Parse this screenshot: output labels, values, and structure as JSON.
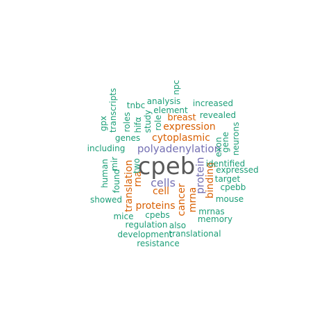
{
  "colors": {
    "background": "#ffffff",
    "tier1": "#595959",
    "tier2": "#7570b3",
    "tier3": "#d95f02",
    "tier4": "#1b9e77"
  },
  "words": [
    {
      "text": "cpeb",
      "color": "tier1",
      "rotated": false
    },
    {
      "text": "polyadenylation",
      "color": "tier2",
      "rotated": false
    },
    {
      "text": "cells",
      "color": "tier2",
      "rotated": false
    },
    {
      "text": "protein",
      "color": "tier2",
      "rotated": true
    },
    {
      "text": "cytoplasmic",
      "color": "tier3",
      "rotated": false
    },
    {
      "text": "expression",
      "color": "tier3",
      "rotated": false
    },
    {
      "text": "breast",
      "color": "tier3",
      "rotated": false
    },
    {
      "text": "translation",
      "color": "tier3",
      "rotated": true
    },
    {
      "text": "rna",
      "color": "tier3",
      "rotated": true
    },
    {
      "text": "cell",
      "color": "tier3",
      "rotated": false
    },
    {
      "text": "cancer",
      "color": "tier3",
      "rotated": true
    },
    {
      "text": "binding",
      "color": "tier3",
      "rotated": true
    },
    {
      "text": "mrna",
      "color": "tier3",
      "rotated": true
    },
    {
      "text": "proteins",
      "color": "tier3",
      "rotated": false
    },
    {
      "text": "npc",
      "color": "tier4",
      "rotated": true
    },
    {
      "text": "analysis",
      "color": "tier4",
      "rotated": false
    },
    {
      "text": "increased",
      "color": "tier4",
      "rotated": false
    },
    {
      "text": "tnbc",
      "color": "tier4",
      "rotated": false
    },
    {
      "text": "element",
      "color": "tier4",
      "rotated": false
    },
    {
      "text": "revealed",
      "color": "tier4",
      "rotated": false
    },
    {
      "text": "transcripts",
      "color": "tier4",
      "rotated": true
    },
    {
      "text": "gpx",
      "color": "tier4",
      "rotated": true
    },
    {
      "text": "roles",
      "color": "tier4",
      "rotated": true
    },
    {
      "text": "hifα",
      "color": "tier4",
      "rotated": true
    },
    {
      "text": "study",
      "color": "tier4",
      "rotated": true
    },
    {
      "text": "role",
      "color": "tier4",
      "rotated": true
    },
    {
      "text": "genes",
      "color": "tier4",
      "rotated": false
    },
    {
      "text": "neurons",
      "color": "tier4",
      "rotated": true
    },
    {
      "text": "gene",
      "color": "tier4",
      "rotated": true
    },
    {
      "text": "exon",
      "color": "tier4",
      "rotated": true
    },
    {
      "text": "including",
      "color": "tier4",
      "rotated": false
    },
    {
      "text": "mir",
      "color": "tier4",
      "rotated": true
    },
    {
      "text": "human",
      "color": "tier4",
      "rotated": true
    },
    {
      "text": "two",
      "color": "tier4",
      "rotated": true
    },
    {
      "text": "identified",
      "color": "tier4",
      "rotated": false
    },
    {
      "text": "expressed",
      "color": "tier4",
      "rotated": false
    },
    {
      "text": "found",
      "color": "tier4",
      "rotated": true
    },
    {
      "text": "target",
      "color": "tier4",
      "rotated": false
    },
    {
      "text": "cpebb",
      "color": "tier4",
      "rotated": false
    },
    {
      "text": "showed",
      "color": "tier4",
      "rotated": false
    },
    {
      "text": "mouse",
      "color": "tier4",
      "rotated": false
    },
    {
      "text": "mrnas",
      "color": "tier4",
      "rotated": false
    },
    {
      "text": "mice",
      "color": "tier4",
      "rotated": false
    },
    {
      "text": "cpebs",
      "color": "tier4",
      "rotated": false
    },
    {
      "text": "memory",
      "color": "tier4",
      "rotated": false
    },
    {
      "text": "regulation",
      "color": "tier4",
      "rotated": false
    },
    {
      "text": "also",
      "color": "tier4",
      "rotated": false
    },
    {
      "text": "development",
      "color": "tier4",
      "rotated": false
    },
    {
      "text": "translational",
      "color": "tier4",
      "rotated": false
    },
    {
      "text": "resistance",
      "color": "tier4",
      "rotated": false
    }
  ]
}
